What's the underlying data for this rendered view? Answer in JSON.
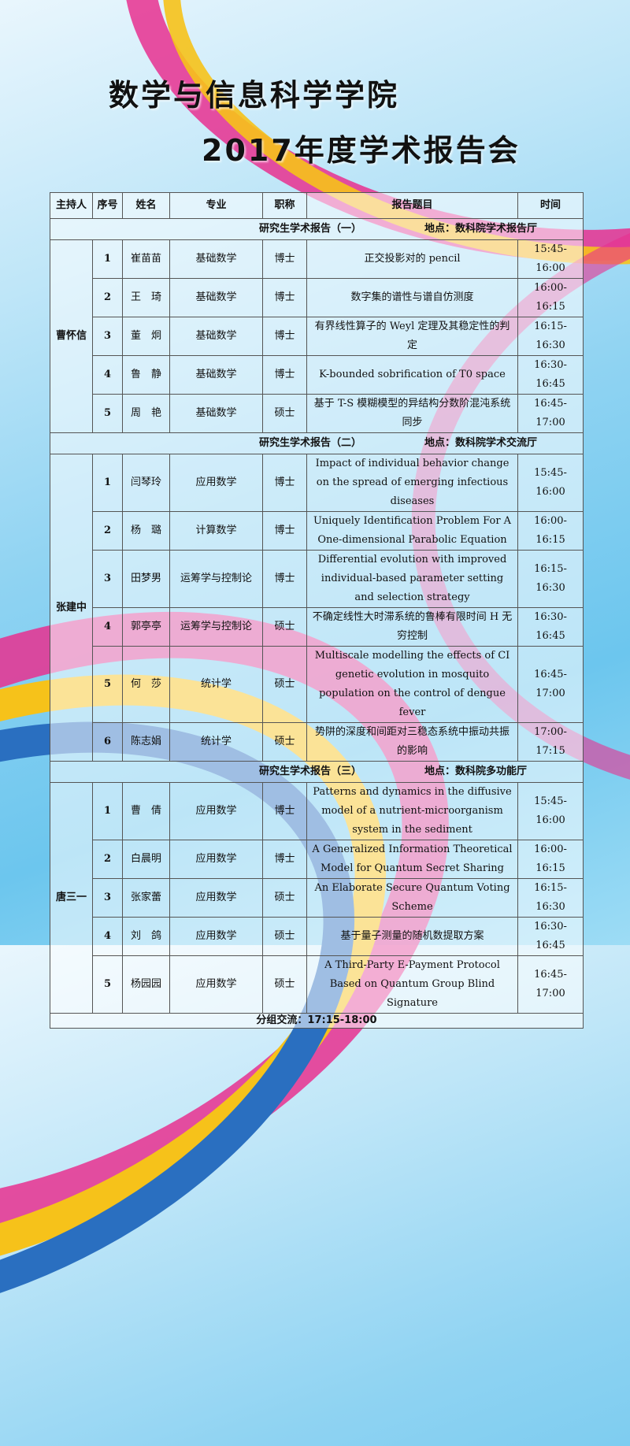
{
  "title_line1": "数学与信息科学学院",
  "title_line2": "2017年度学术报告会",
  "headers": [
    "主持人",
    "序号",
    "姓名",
    "专业",
    "职称",
    "报告题目",
    "时间"
  ],
  "sections": [
    {
      "name": "研究生学术报告（一）",
      "location": "地点：数科院学术报告厅",
      "host": "曹怀信",
      "rows": [
        {
          "no": "1",
          "name": "崔苗苗",
          "major": "基础数学",
          "title": "博士",
          "topic": "正交投影对的 pencil",
          "time": "15:45-16:00"
        },
        {
          "no": "2",
          "name": "王　琦",
          "major": "基础数学",
          "title": "博士",
          "topic": "数字集的谱性与谱自仿测度",
          "time": "16:00-16:15"
        },
        {
          "no": "3",
          "name": "董　炯",
          "major": "基础数学",
          "title": "博士",
          "topic": "有界线性算子的 Weyl 定理及其稳定性的判定",
          "time": "16:15-16:30"
        },
        {
          "no": "4",
          "name": "鲁　静",
          "major": "基础数学",
          "title": "博士",
          "topic": "K-bounded sobrification of T0 space",
          "time": "16:30-16:45"
        },
        {
          "no": "5",
          "name": "周　艳",
          "major": "基础数学",
          "title": "硕士",
          "topic": "基于 T-S 模糊模型的异结构分数阶混沌系统同步",
          "time": "16:45-17:00"
        }
      ]
    },
    {
      "name": "研究生学术报告（二）",
      "location": "地点：数科院学术交流厅",
      "host": "张建中",
      "rows": [
        {
          "no": "1",
          "name": "闫琴玲",
          "major": "应用数学",
          "title": "博士",
          "topic": "Impact of individual behavior change on the spread of emerging infectious diseases",
          "time": "15:45-16:00"
        },
        {
          "no": "2",
          "name": "杨　璐",
          "major": "计算数学",
          "title": "博士",
          "topic": "Uniquely Identification Problem For A One-dimensional Parabolic Equation",
          "time": "16:00-16:15"
        },
        {
          "no": "3",
          "name": "田梦男",
          "major": "运筹学与控制论",
          "title": "博士",
          "topic": "Differential evolution with improved individual-based parameter setting and selection strategy",
          "time": "16:15-16:30"
        },
        {
          "no": "4",
          "name": "郭亭亭",
          "major": "运筹学与控制论",
          "title": "硕士",
          "topic": "不确定线性大时滞系统的鲁棒有限时间 H 无穷控制",
          "time": "16:30-16:45"
        },
        {
          "no": "5",
          "name": "何　莎",
          "major": "统计学",
          "title": "硕士",
          "topic": "Multiscale modelling the effects of CI genetic evolution in mosquito population on the control of dengue fever",
          "time": "16:45-17:00"
        },
        {
          "no": "6",
          "name": "陈志娟",
          "major": "统计学",
          "title": "硕士",
          "topic": "势阱的深度和间距对三稳态系统中振动共振的影响",
          "time": "17:00-17:15"
        }
      ]
    },
    {
      "name": "研究生学术报告（三）",
      "location": "地点：数科院多功能厅",
      "host": "唐三一",
      "rows": [
        {
          "no": "1",
          "name": "曹　倩",
          "major": "应用数学",
          "title": "博士",
          "topic": "Patterns and dynamics in the diffusive model of a nutrient-microorganism system in the sediment",
          "time": "15:45-16:00"
        },
        {
          "no": "2",
          "name": "白晨明",
          "major": "应用数学",
          "title": "博士",
          "topic": "A Generalized Information Theoretical Model for Quantum Secret Sharing",
          "time": "16:00-16:15"
        },
        {
          "no": "3",
          "name": "张家蕾",
          "major": "应用数学",
          "title": "硕士",
          "topic": "An Elaborate Secure Quantum Voting Scheme",
          "time": "16:15-16:30"
        },
        {
          "no": "4",
          "name": "刘　鸽",
          "major": "应用数学",
          "title": "硕士",
          "topic": "基于量子测量的随机数提取方案",
          "time": "16:30-16:45"
        },
        {
          "no": "5",
          "name": "杨园园",
          "major": "应用数学",
          "title": "硕士",
          "topic": "A Third-Party E-Payment Protocol Based on Quantum Group Blind Signature",
          "time": "16:45-17:00"
        }
      ]
    }
  ],
  "footer": "分组交流：17:15-18:00"
}
